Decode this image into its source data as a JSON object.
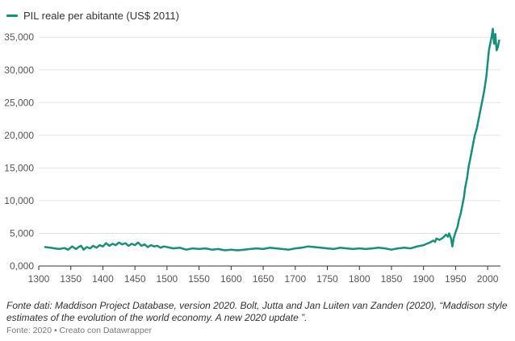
{
  "legend": {
    "label": "PIL reale per abitante (US$ 2011)",
    "color": "#178f79"
  },
  "chart_data": {
    "type": "line",
    "title": "",
    "xlabel": "",
    "ylabel": "",
    "xlim": [
      1300,
      2020
    ],
    "ylim": [
      0,
      37000
    ],
    "x_ticks": [
      1300,
      1350,
      1400,
      1450,
      1500,
      1550,
      1600,
      1650,
      1700,
      1750,
      1800,
      1850,
      1900,
      1950,
      2000
    ],
    "x_tick_labels": [
      "1300",
      "1350",
      "1400",
      "1450",
      "1500",
      "1550",
      "1600",
      "1650",
      "1700",
      "1750",
      "1800",
      "1850",
      "1900",
      "1950",
      "2000"
    ],
    "y_ticks": [
      0,
      5000,
      10000,
      15000,
      20000,
      25000,
      30000,
      35000
    ],
    "y_tick_labels": [
      "0,000",
      "5,000",
      "10,000",
      "15,000",
      "20,000",
      "25,000",
      "30,000",
      "35,000"
    ],
    "grid": true,
    "legend_position": "top-left",
    "series": [
      {
        "name": "PIL reale per abitante (US$ 2011)",
        "color": "#178f79",
        "x": [
          1310,
          1318,
          1325,
          1332,
          1340,
          1346,
          1352,
          1358,
          1362,
          1366,
          1370,
          1375,
          1380,
          1385,
          1390,
          1395,
          1400,
          1405,
          1410,
          1415,
          1420,
          1425,
          1430,
          1435,
          1440,
          1445,
          1450,
          1455,
          1460,
          1465,
          1470,
          1475,
          1480,
          1485,
          1490,
          1495,
          1500,
          1510,
          1520,
          1530,
          1540,
          1550,
          1560,
          1570,
          1580,
          1590,
          1600,
          1610,
          1620,
          1630,
          1640,
          1650,
          1660,
          1670,
          1680,
          1690,
          1700,
          1710,
          1720,
          1730,
          1740,
          1750,
          1760,
          1770,
          1780,
          1790,
          1800,
          1810,
          1820,
          1830,
          1840,
          1850,
          1860,
          1870,
          1880,
          1890,
          1900,
          1905,
          1910,
          1915,
          1918,
          1920,
          1925,
          1930,
          1935,
          1938,
          1940,
          1943,
          1945,
          1947,
          1950,
          1953,
          1955,
          1958,
          1960,
          1963,
          1965,
          1968,
          1970,
          1973,
          1975,
          1978,
          1980,
          1983,
          1985,
          1988,
          1990,
          1993,
          1995,
          1998,
          2000,
          2002,
          2004,
          2006,
          2008,
          2009,
          2010,
          2012,
          2014,
          2016,
          2018
        ],
        "values": [
          2900,
          2800,
          2700,
          2600,
          2750,
          2500,
          3000,
          2600,
          2900,
          3100,
          2500,
          2900,
          2700,
          3100,
          2800,
          3200,
          3000,
          3500,
          3100,
          3400,
          3200,
          3600,
          3300,
          3500,
          3100,
          3400,
          3200,
          3600,
          3100,
          3300,
          2900,
          3200,
          3000,
          3100,
          2800,
          3000,
          2900,
          2700,
          2800,
          2500,
          2700,
          2600,
          2700,
          2500,
          2600,
          2400,
          2500,
          2400,
          2500,
          2600,
          2700,
          2600,
          2800,
          2700,
          2600,
          2500,
          2700,
          2800,
          3000,
          2900,
          2800,
          2700,
          2600,
          2800,
          2700,
          2600,
          2700,
          2600,
          2700,
          2800,
          2700,
          2500,
          2700,
          2800,
          2700,
          3000,
          3200,
          3400,
          3600,
          3900,
          3700,
          4200,
          4000,
          4300,
          4800,
          4500,
          5000,
          4200,
          3000,
          4200,
          5200,
          6000,
          7000,
          8000,
          9000,
          10500,
          12000,
          13500,
          15000,
          16500,
          17500,
          19000,
          20000,
          21000,
          22000,
          23500,
          24500,
          26000,
          27000,
          29000,
          31000,
          33000,
          34000,
          35000,
          36300,
          35000,
          34000,
          35500,
          33000,
          33500,
          34500
        ]
      }
    ]
  },
  "footer": {
    "note": "Fonte dati: Maddison Project Database, version 2020. Bolt, Jutta and Jan Luiten van Zanden (2020), “Maddison style estimates of the evolution of the world economy. A new 2020 update ”.",
    "source": "Fonte: 2020 • Creato con Datawrapper"
  }
}
